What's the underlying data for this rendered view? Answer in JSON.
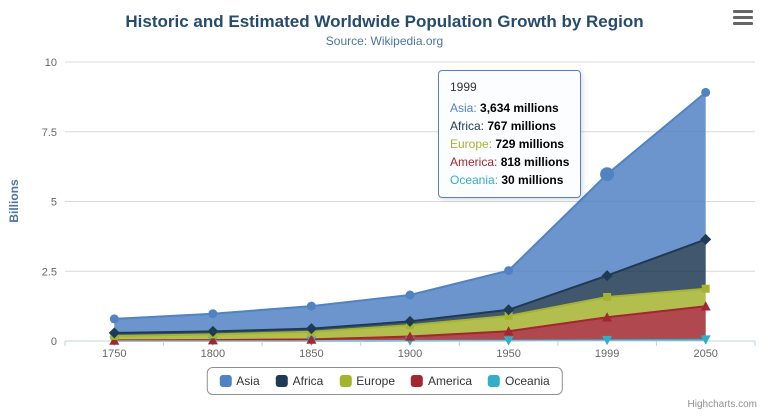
{
  "chart": {
    "title": "Historic and Estimated Worldwide Population Growth by Region",
    "subtitle": "Source: Wikipedia.org",
    "credits": "Highcharts.com"
  },
  "icons": {
    "context_menu_icon": "hamburger-menu"
  },
  "theme": {
    "title_color": "#274b6d",
    "subtitle_color": "#4d759e",
    "axis_title_color": "#4d759e",
    "axis_label_color": "#666666",
    "grid_color": "#d8d8d8",
    "axis_line_color": "#c0d0e0",
    "legend_border_color": "#909090",
    "legend_text_color": "#333333",
    "credits_color": "#909090",
    "background_color": "#ffffff"
  },
  "chart_data": {
    "type": "area",
    "stacked": true,
    "title": "Historic and Estimated Worldwide Population Growth by Region",
    "subtitle": "Source: Wikipedia.org",
    "categories": [
      "1750",
      "1800",
      "1850",
      "1900",
      "1950",
      "1999",
      "2050"
    ],
    "xlabel": "",
    "ylabel": "Billions",
    "ylim": [
      0,
      10
    ],
    "y_ticks": [
      0,
      2.5,
      5,
      7.5,
      10
    ],
    "values_unit": "millions",
    "series": [
      {
        "name": "Asia",
        "color": "#5183C3",
        "marker": "circle",
        "values": [
          502,
          635,
          809,
          947,
          1402,
          3634,
          5268
        ]
      },
      {
        "name": "Africa",
        "color": "#1F3A54",
        "marker": "diamond",
        "values": [
          106,
          107,
          111,
          133,
          221,
          767,
          1766
        ]
      },
      {
        "name": "Europe",
        "color": "#A4B42F",
        "marker": "square",
        "values": [
          163,
          203,
          276,
          408,
          547,
          729,
          628
        ]
      },
      {
        "name": "America",
        "color": "#A12830",
        "marker": "triangle",
        "values": [
          18,
          31,
          54,
          156,
          339,
          818,
          1201
        ]
      },
      {
        "name": "Oceania",
        "color": "#32AEC5",
        "marker": "triangle-down",
        "values": [
          2,
          2,
          2,
          6,
          13,
          30,
          46
        ]
      }
    ],
    "stack_order": "first series on top (reversed stacks)",
    "legend_position": "bottom-center",
    "grid": "horizontal"
  },
  "hover_point": {
    "series": "Asia",
    "category": "1999"
  },
  "tooltip": {
    "header": "1999",
    "unit": "millions",
    "rows": [
      {
        "name": "Asia",
        "value": "3,634"
      },
      {
        "name": "Africa",
        "value": "767"
      },
      {
        "name": "Europe",
        "value": "729"
      },
      {
        "name": "America",
        "value": "818"
      },
      {
        "name": "Oceania",
        "value": "30"
      }
    ]
  }
}
